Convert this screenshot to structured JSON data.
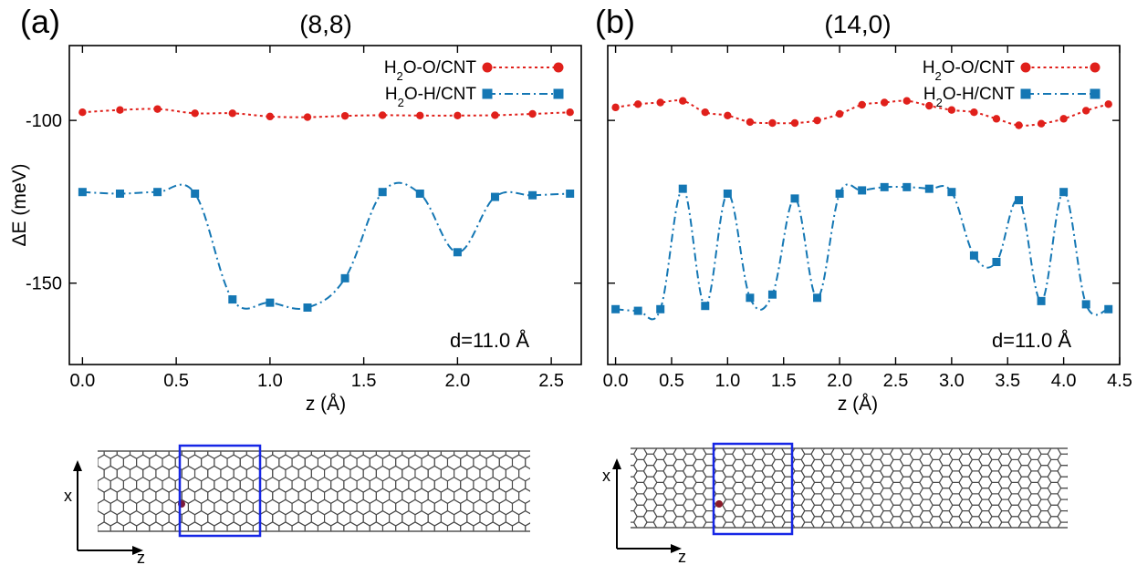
{
  "chart_data": [
    {
      "type": "line",
      "panel_label": "(a)",
      "title": "(8,8)",
      "xlabel": "z (Å)",
      "ylabel": "ΔE (meV)",
      "xlim": [
        -0.07,
        2.66
      ],
      "ylim": [
        -175,
        -77
      ],
      "xticks": [
        0.0,
        0.5,
        1.0,
        1.5,
        2.0,
        2.5
      ],
      "xtick_labels": [
        "0.0",
        "0.5",
        "1.0",
        "1.5",
        "2.0",
        "2.5"
      ],
      "yticks": [
        -100,
        -150
      ],
      "ytick_labels": [
        "-100",
        "-150"
      ],
      "annotation": "d=11.0 Å",
      "legend_position": "top-right",
      "series": [
        {
          "name": "H2O-O/CNT",
          "color": "#e0201b",
          "marker": "circle",
          "x": [
            0.0,
            0.2,
            0.4,
            0.6,
            0.8,
            1.0,
            1.2,
            1.4,
            1.6,
            1.8,
            2.0,
            2.2,
            2.4,
            2.6
          ],
          "y": [
            -97.5,
            -96.8,
            -96.5,
            -97.8,
            -97.8,
            -98.8,
            -99.0,
            -98.6,
            -98.4,
            -98.5,
            -98.5,
            -98.4,
            -98.0,
            -97.5
          ]
        },
        {
          "name": "H2O-H/CNT",
          "color": "#1477b4",
          "marker": "square",
          "x": [
            0.0,
            0.2,
            0.4,
            0.6,
            0.8,
            1.0,
            1.2,
            1.4,
            1.6,
            1.8,
            2.0,
            2.2,
            2.4,
            2.6
          ],
          "y": [
            -122.0,
            -122.5,
            -122.0,
            -122.5,
            -155.0,
            -156.0,
            -157.5,
            -148.5,
            -122.0,
            -122.5,
            -140.5,
            -123.5,
            -123.0,
            -122.5
          ]
        }
      ]
    },
    {
      "type": "line",
      "panel_label": "(b)",
      "title": "(14,0)",
      "xlabel": "z (Å)",
      "ylabel": "",
      "xlim": [
        -0.07,
        4.5
      ],
      "ylim": [
        -175,
        -77
      ],
      "xticks": [
        0.0,
        0.5,
        1.0,
        1.5,
        2.0,
        2.5,
        3.0,
        3.5,
        4.0,
        4.5
      ],
      "xtick_labels": [
        "0.0",
        "0.5",
        "1.0",
        "1.5",
        "2.0",
        "2.5",
        "3.0",
        "3.5",
        "4.0",
        "4.5"
      ],
      "yticks": [
        -100,
        -150
      ],
      "ytick_labels": [
        "",
        ""
      ],
      "annotation": "d=11.0 Å",
      "legend_position": "top-right",
      "series": [
        {
          "name": "H2O-O/CNT",
          "color": "#e0201b",
          "marker": "circle",
          "x": [
            0.0,
            0.2,
            0.4,
            0.6,
            0.8,
            1.0,
            1.2,
            1.4,
            1.6,
            1.8,
            2.0,
            2.2,
            2.4,
            2.6,
            2.8,
            3.0,
            3.2,
            3.4,
            3.6,
            3.8,
            4.0,
            4.2,
            4.4
          ],
          "y": [
            -96.0,
            -95.0,
            -94.5,
            -94.0,
            -97.5,
            -98.5,
            -100.5,
            -100.8,
            -100.8,
            -100.0,
            -98.0,
            -95.2,
            -94.5,
            -94.0,
            -95.5,
            -96.8,
            -97.5,
            -99.5,
            -101.5,
            -101.0,
            -99.5,
            -97.0,
            -95.0
          ]
        },
        {
          "name": "H2O-H/CNT",
          "color": "#1477b4",
          "marker": "square",
          "x": [
            0.0,
            0.2,
            0.4,
            0.6,
            0.8,
            1.0,
            1.2,
            1.4,
            1.6,
            1.8,
            2.0,
            2.2,
            2.4,
            2.6,
            2.8,
            3.0,
            3.2,
            3.4,
            3.6,
            3.8,
            4.0,
            4.2,
            4.4
          ],
          "y": [
            -158.0,
            -158.5,
            -158.0,
            -121.0,
            -157.0,
            -122.5,
            -154.5,
            -153.5,
            -124.0,
            -154.5,
            -122.5,
            -121.5,
            -120.5,
            -120.5,
            -121.0,
            -122.0,
            -141.5,
            -143.5,
            -124.5,
            -155.5,
            -122.0,
            -156.5,
            -158.0
          ]
        }
      ]
    }
  ],
  "legend": {
    "o_label": {
      "main": "H",
      "sub": "2",
      "rest": "O-O/CNT"
    },
    "h_label": {
      "main": "H",
      "sub": "2",
      "rest": "O-H/CNT"
    }
  },
  "insets": [
    {
      "x_axis_label": "z",
      "y_axis_label": "x"
    },
    {
      "x_axis_label": "z",
      "y_axis_label": "x"
    }
  ],
  "colors": {
    "series_o": "#e0201b",
    "series_h": "#1477b4",
    "highlight_box": "#1626e6"
  }
}
